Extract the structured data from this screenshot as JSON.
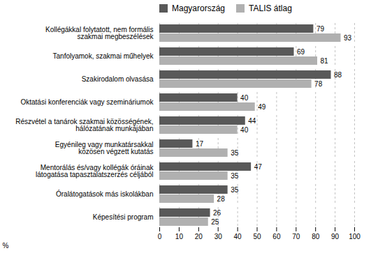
{
  "chart_data": {
    "type": "bar",
    "orientation": "horizontal",
    "categories": [
      "Kollégákkal folytatott, nem formális\nszakmai megbeszélések",
      "Tanfolyamok, szakmai műhelyek",
      "Szakirodalom olvasása",
      "Oktatási konferenciák vagy szemináriumok",
      "Részvétel a tanárok szakmai közösségének,\nhálózatának munkájában",
      "Egyénileg vagy munkatársakkal\nközösen végzett kutatás",
      "Mentorálás és/vagy kollégák óráinak\nlátogatása tapasztalatszerzés céljából",
      "Óralátogatások más iskolákban",
      "Képesítési program"
    ],
    "series": [
      {
        "name": "Magyarország",
        "color": "#595959",
        "values": [
          79,
          69,
          88,
          40,
          44,
          17,
          47,
          35,
          26
        ]
      },
      {
        "name": "TALIS átlag",
        "color": "#b0b0b0",
        "values": [
          93,
          81,
          78,
          49,
          40,
          35,
          35,
          28,
          25
        ]
      }
    ],
    "xlabel": "%",
    "xlim": [
      0,
      100
    ],
    "xticks": [
      0,
      10,
      20,
      30,
      40,
      50,
      60,
      70,
      80,
      90,
      100
    ],
    "grid": true,
    "legend": "upper left",
    "data_labels": true
  }
}
